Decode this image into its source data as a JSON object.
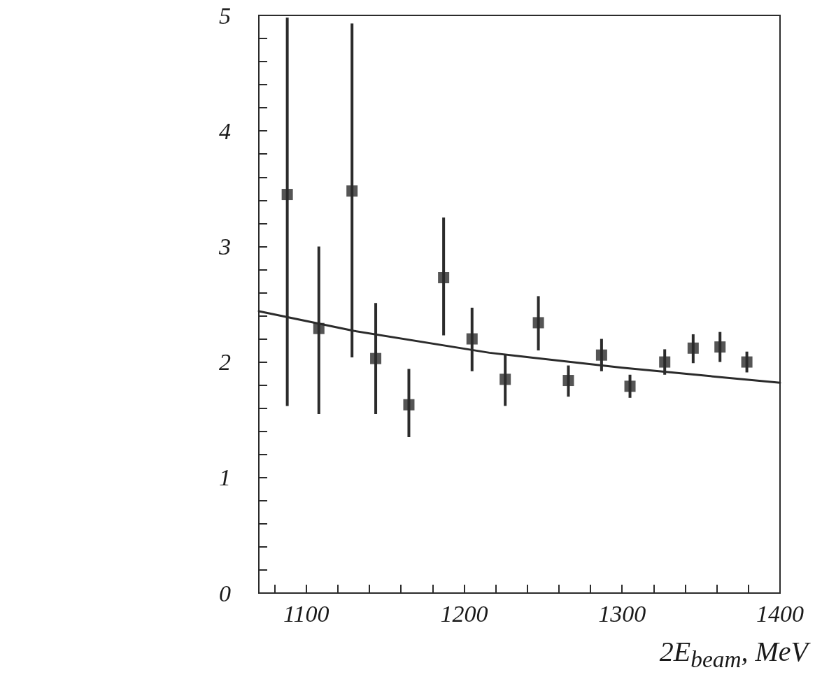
{
  "chart_data": {
    "type": "scatter",
    "xlabel": "2E$_{beam}$, MeV",
    "xlim": [
      1070,
      1400
    ],
    "xticks": [
      {
        "value": 1080,
        "label": null
      },
      1100,
      {
        "value": 1120,
        "label": null
      },
      {
        "value": 1140,
        "label": null
      },
      {
        "value": 1160,
        "label": null
      },
      {
        "value": 1180,
        "label": null
      },
      1200,
      {
        "value": 1220,
        "label": null
      },
      {
        "value": 1240,
        "label": null
      },
      {
        "value": 1260,
        "label": null
      },
      {
        "value": 1280,
        "label": null
      },
      1300,
      {
        "value": 1320,
        "label": null
      },
      {
        "value": 1340,
        "label": null
      },
      {
        "value": 1360,
        "label": null
      },
      {
        "value": 1380,
        "label": null
      },
      1400
    ],
    "ylim": [
      0,
      5
    ],
    "yticks": [
      0,
      {
        "value": 0.2,
        "label": null
      },
      {
        "value": 0.4,
        "label": null
      },
      {
        "value": 0.6,
        "label": null
      },
      {
        "value": 0.8,
        "label": null
      },
      1,
      {
        "value": 1.2,
        "label": null
      },
      {
        "value": 1.4,
        "label": null
      },
      {
        "value": 1.6,
        "label": null
      },
      {
        "value": 1.8,
        "label": null
      },
      2,
      {
        "value": 2.2,
        "label": null
      },
      {
        "value": 2.4,
        "label": null
      },
      {
        "value": 2.6,
        "label": null
      },
      {
        "value": 2.8,
        "label": null
      },
      3,
      {
        "value": 3.2,
        "label": null
      },
      {
        "value": 3.4,
        "label": null
      },
      {
        "value": 3.6,
        "label": null
      },
      {
        "value": 3.8,
        "label": null
      },
      4,
      {
        "value": 4.2,
        "label": null
      },
      {
        "value": 4.4,
        "label": null
      },
      {
        "value": 4.6,
        "label": null
      },
      {
        "value": 4.8,
        "label": null
      },
      5
    ],
    "line_style": "solid",
    "grid": false,
    "series": [
      {
        "marker": "square",
        "color": "#2b2b2b",
        "x": [
          1088,
          1108,
          1129,
          1144,
          1165,
          1187,
          1205,
          1226,
          1247,
          1266,
          1287,
          1305,
          1327,
          1345,
          1362,
          1379
        ],
        "values": [
          3.45,
          2.29,
          3.48,
          2.03,
          1.63,
          2.73,
          2.2,
          1.85,
          2.34,
          1.84,
          2.06,
          1.79,
          2.0,
          2.12,
          2.13,
          2.0
        ],
        "errors": [
          [
            1.62,
            4.98
          ],
          [
            1.55,
            3.0
          ],
          [
            2.04,
            4.93
          ],
          [
            1.55,
            2.51
          ],
          [
            1.35,
            1.94
          ],
          [
            2.23,
            3.25
          ],
          [
            1.92,
            2.47
          ],
          [
            1.62,
            2.07
          ],
          [
            2.1,
            2.57
          ],
          [
            1.7,
            1.97
          ],
          [
            1.92,
            2.2
          ],
          [
            1.69,
            1.89
          ],
          [
            1.89,
            2.11
          ],
          [
            1.99,
            2.24
          ],
          [
            2.0,
            2.26
          ],
          [
            1.91,
            2.09
          ]
        ]
      },
      {
        "type": "line",
        "color": "#2b2b2b",
        "x": [
          1070,
          1130,
          1216,
          1300,
          1400
        ],
        "values": [
          2.44,
          2.27,
          2.08,
          1.95,
          1.82
        ]
      }
    ]
  }
}
